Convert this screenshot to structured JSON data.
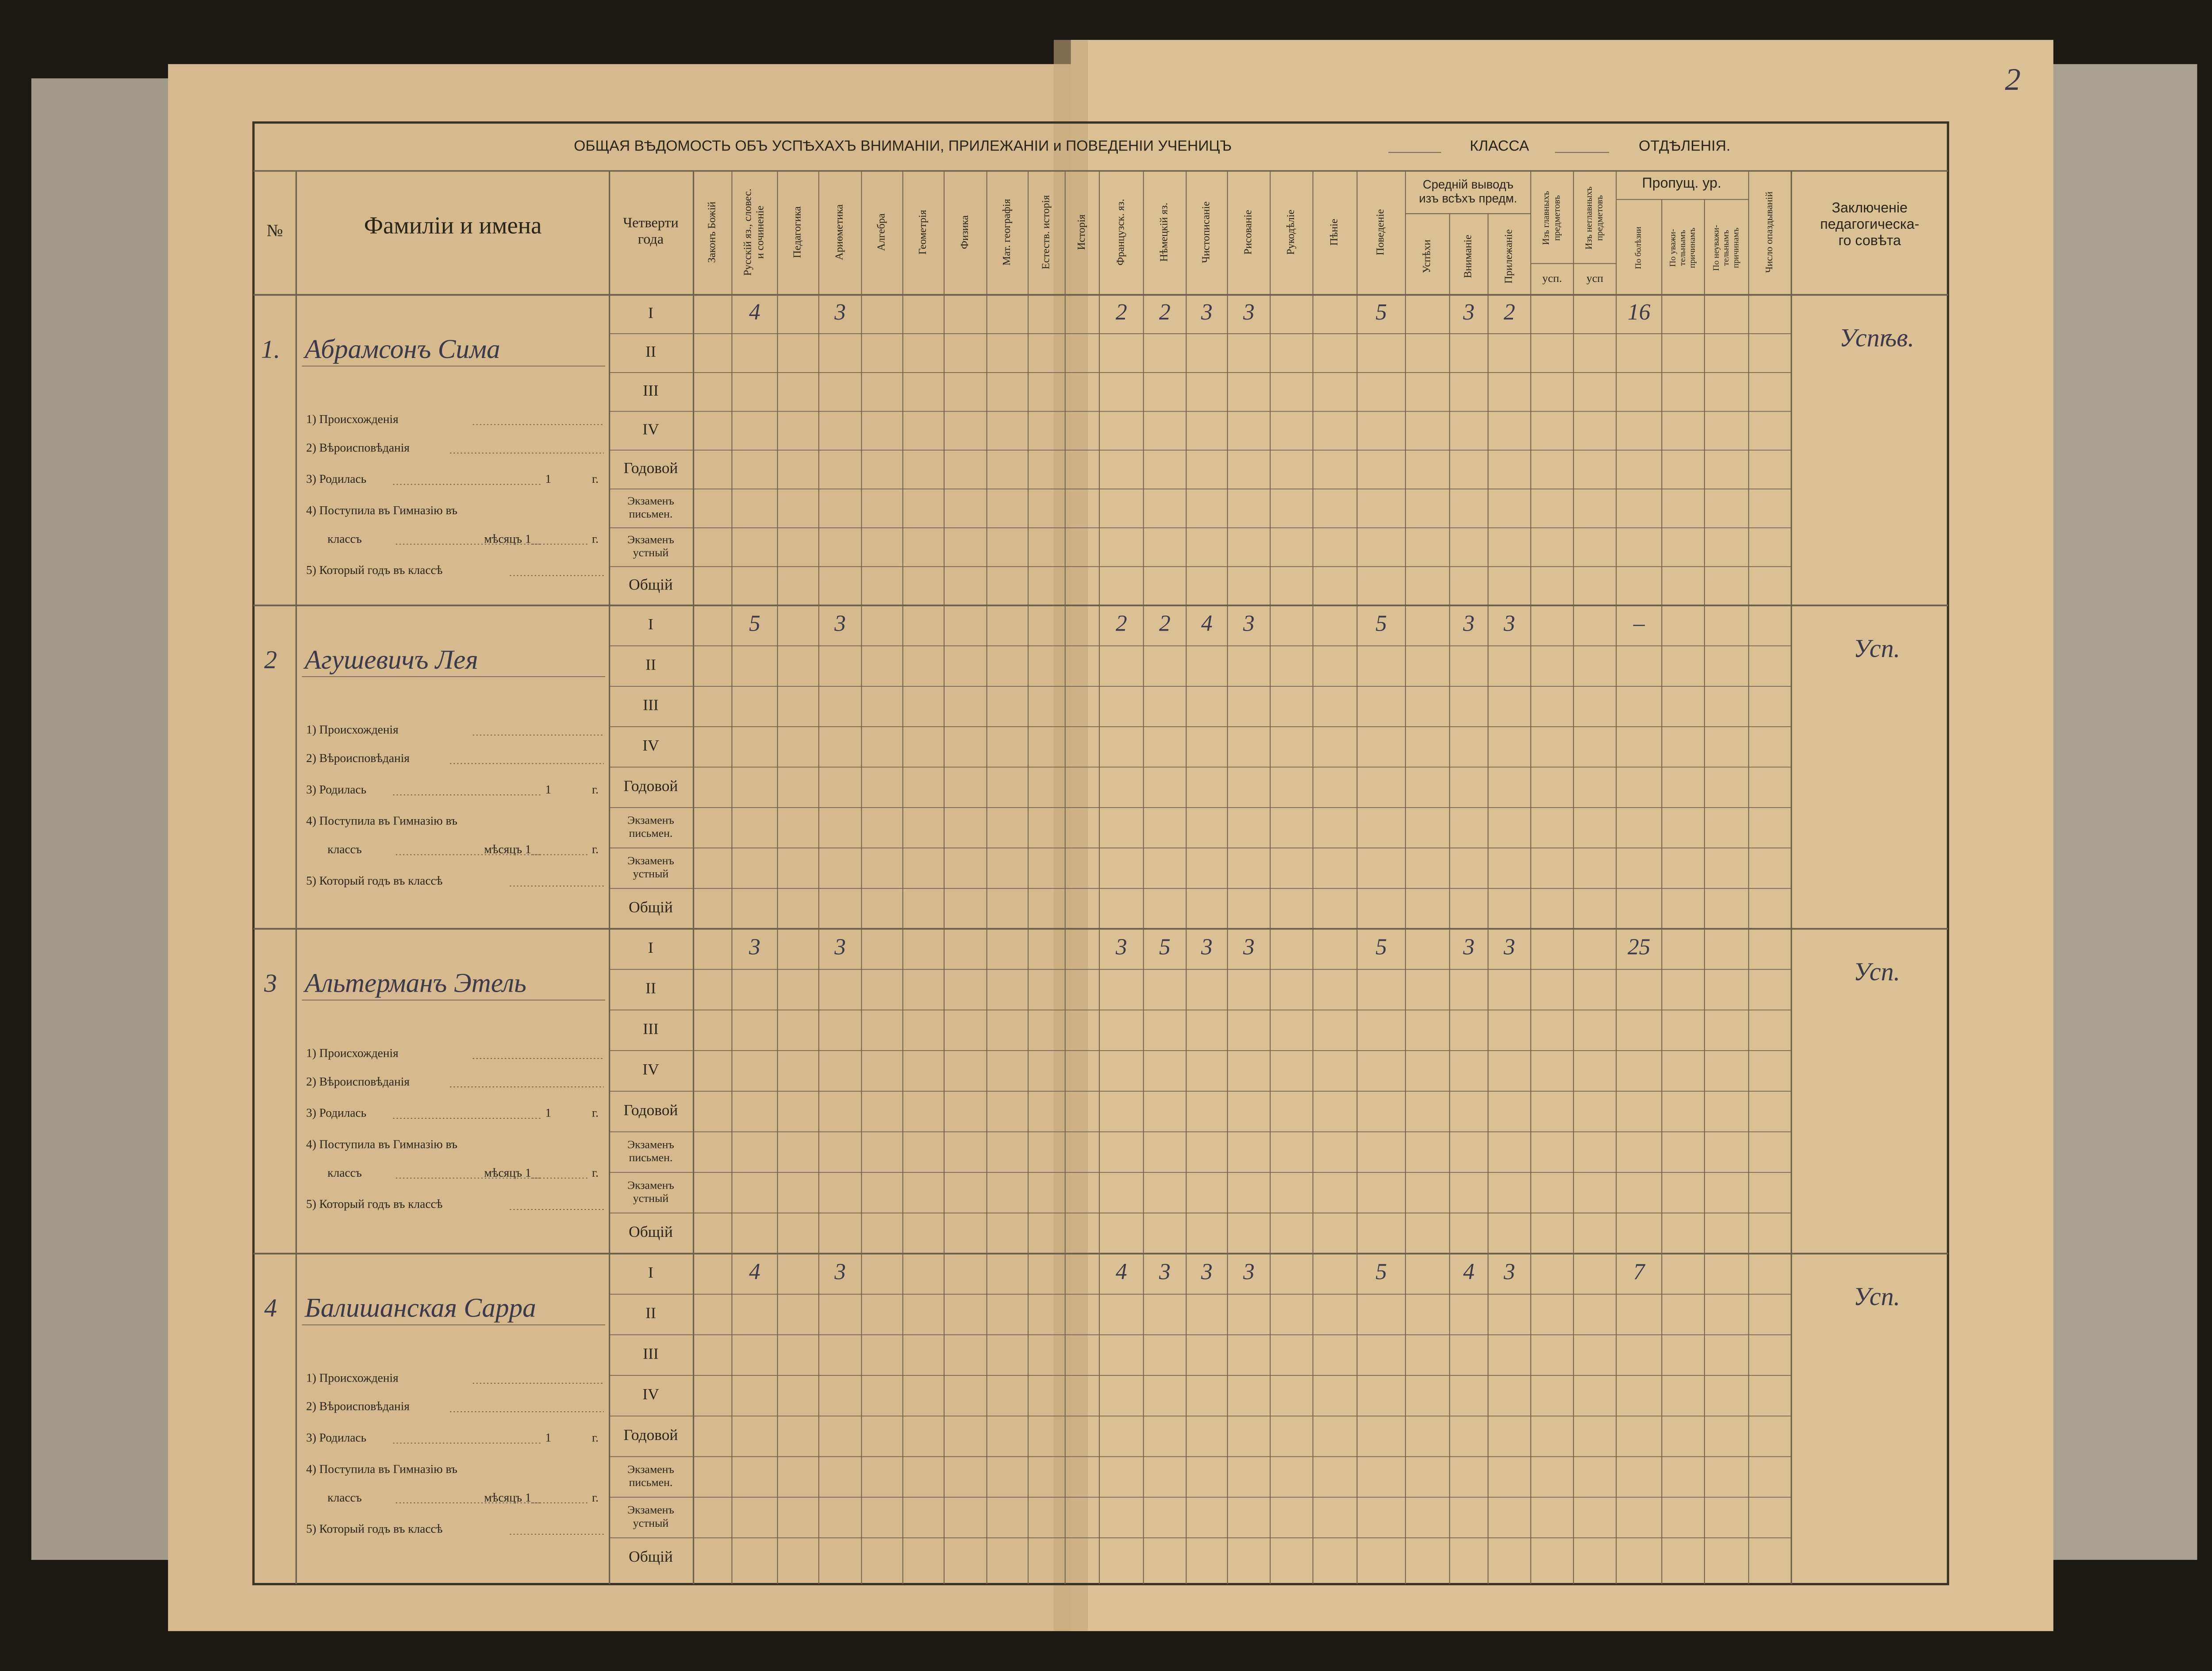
{
  "page_number": "2",
  "header": {
    "title": "ОБЩАЯ ВѢДОМОСТЬ ОБЪ УСПѢХАХЪ ВНИМАНІИ, ПРИЛЕЖАНІИ и ПОВЕДЕНІИ УЧЕНИЦЪ",
    "class_label": "КЛАССА",
    "department_label": "ОТДѢЛЕНІЯ."
  },
  "columns": {
    "number": "№",
    "names": "Фамиліи и имена",
    "quarters": [
      "Четверти",
      "года"
    ],
    "subjects": [
      [
        "Законъ Божій"
      ],
      [
        "Русскій яз., словес.",
        "и сочиненіе"
      ],
      [
        "Педагогика"
      ],
      [
        "Ариөметика"
      ],
      [
        "Алгебра"
      ],
      [
        "Геометрія"
      ],
      [
        "Физика"
      ],
      [
        "Мат. географія"
      ],
      [
        "Естеств. исторія"
      ],
      [
        "Исторія"
      ],
      [
        "Французск. яз."
      ],
      [
        "Нѣмецкій яз."
      ],
      [
        "Чистописаніе"
      ],
      [
        "Рисованіе"
      ],
      [
        "Рукодѣліе"
      ],
      [
        "Пѣніе"
      ],
      [
        "Поведеніе"
      ]
    ],
    "average": {
      "title": [
        "Средній выводъ",
        "изъ всѣхъ предм."
      ],
      "items": [
        "Успѣхи",
        "Вниманіе",
        "Прилежаніе"
      ]
    },
    "main": {
      "title": [
        "Изъ главныхъ",
        "предметовъ"
      ],
      "sub": "усп."
    },
    "minor": {
      "title": [
        "Изъ неглавныхъ",
        "предметовъ"
      ],
      "sub": "усп"
    },
    "missed": {
      "title": "Пропущ. ур.",
      "items": [
        [
          "По болѣзни"
        ],
        [
          "По уважи-",
          "тельнымъ",
          "причинамъ"
        ],
        [
          "По неуважи-",
          "тельнымъ",
          "причинамъ"
        ]
      ]
    },
    "late": "Число опаздываній",
    "conclusion": [
      "Заключеніе",
      "педагогическа-",
      "го совѣта"
    ]
  },
  "row_labels": [
    [
      "I"
    ],
    [
      "II"
    ],
    [
      "III"
    ],
    [
      "IV"
    ],
    [
      "Годовой"
    ],
    [
      "Экзаменъ",
      "письмен."
    ],
    [
      "Экзаменъ",
      "устный"
    ],
    [
      "Общій"
    ]
  ],
  "form_labels": [
    "1) Происхожденія",
    "2) Вѣроисповѣданія",
    "3) Родилась",
    "1",
    "г.",
    "4) Поступила въ Гимназію въ",
    "классъ",
    "мѣсяцъ 1",
    "г.",
    "5) Который годъ въ классѣ"
  ],
  "students": [
    {
      "number": "1.",
      "name": "Абрамсонъ Сима",
      "grades": [
        null,
        4,
        null,
        3,
        null,
        null,
        null,
        null,
        null,
        null,
        2,
        2,
        3,
        3,
        null,
        null,
        5,
        null,
        3,
        2,
        null,
        null,
        16,
        null,
        null,
        null
      ],
      "conclusion": "Успѣв."
    },
    {
      "number": "2",
      "name": "Агушевичъ Лея",
      "grades": [
        null,
        5,
        null,
        3,
        null,
        null,
        null,
        null,
        null,
        null,
        2,
        2,
        4,
        3,
        null,
        null,
        5,
        null,
        3,
        3,
        null,
        null,
        "–",
        null,
        null,
        null
      ],
      "conclusion": "Усп."
    },
    {
      "number": "3",
      "name": "Альтерманъ Этель",
      "grades": [
        null,
        3,
        null,
        3,
        null,
        null,
        null,
        null,
        null,
        null,
        3,
        5,
        3,
        3,
        null,
        null,
        5,
        null,
        3,
        3,
        null,
        null,
        25,
        null,
        null,
        null
      ],
      "conclusion": "Усп."
    },
    {
      "number": "4",
      "name": "Балишанская Сарра",
      "grades": [
        null,
        4,
        null,
        3,
        null,
        null,
        null,
        null,
        null,
        null,
        4,
        3,
        3,
        3,
        null,
        null,
        5,
        null,
        4,
        3,
        null,
        null,
        7,
        null,
        null,
        null
      ],
      "conclusion": "Усп."
    }
  ]
}
